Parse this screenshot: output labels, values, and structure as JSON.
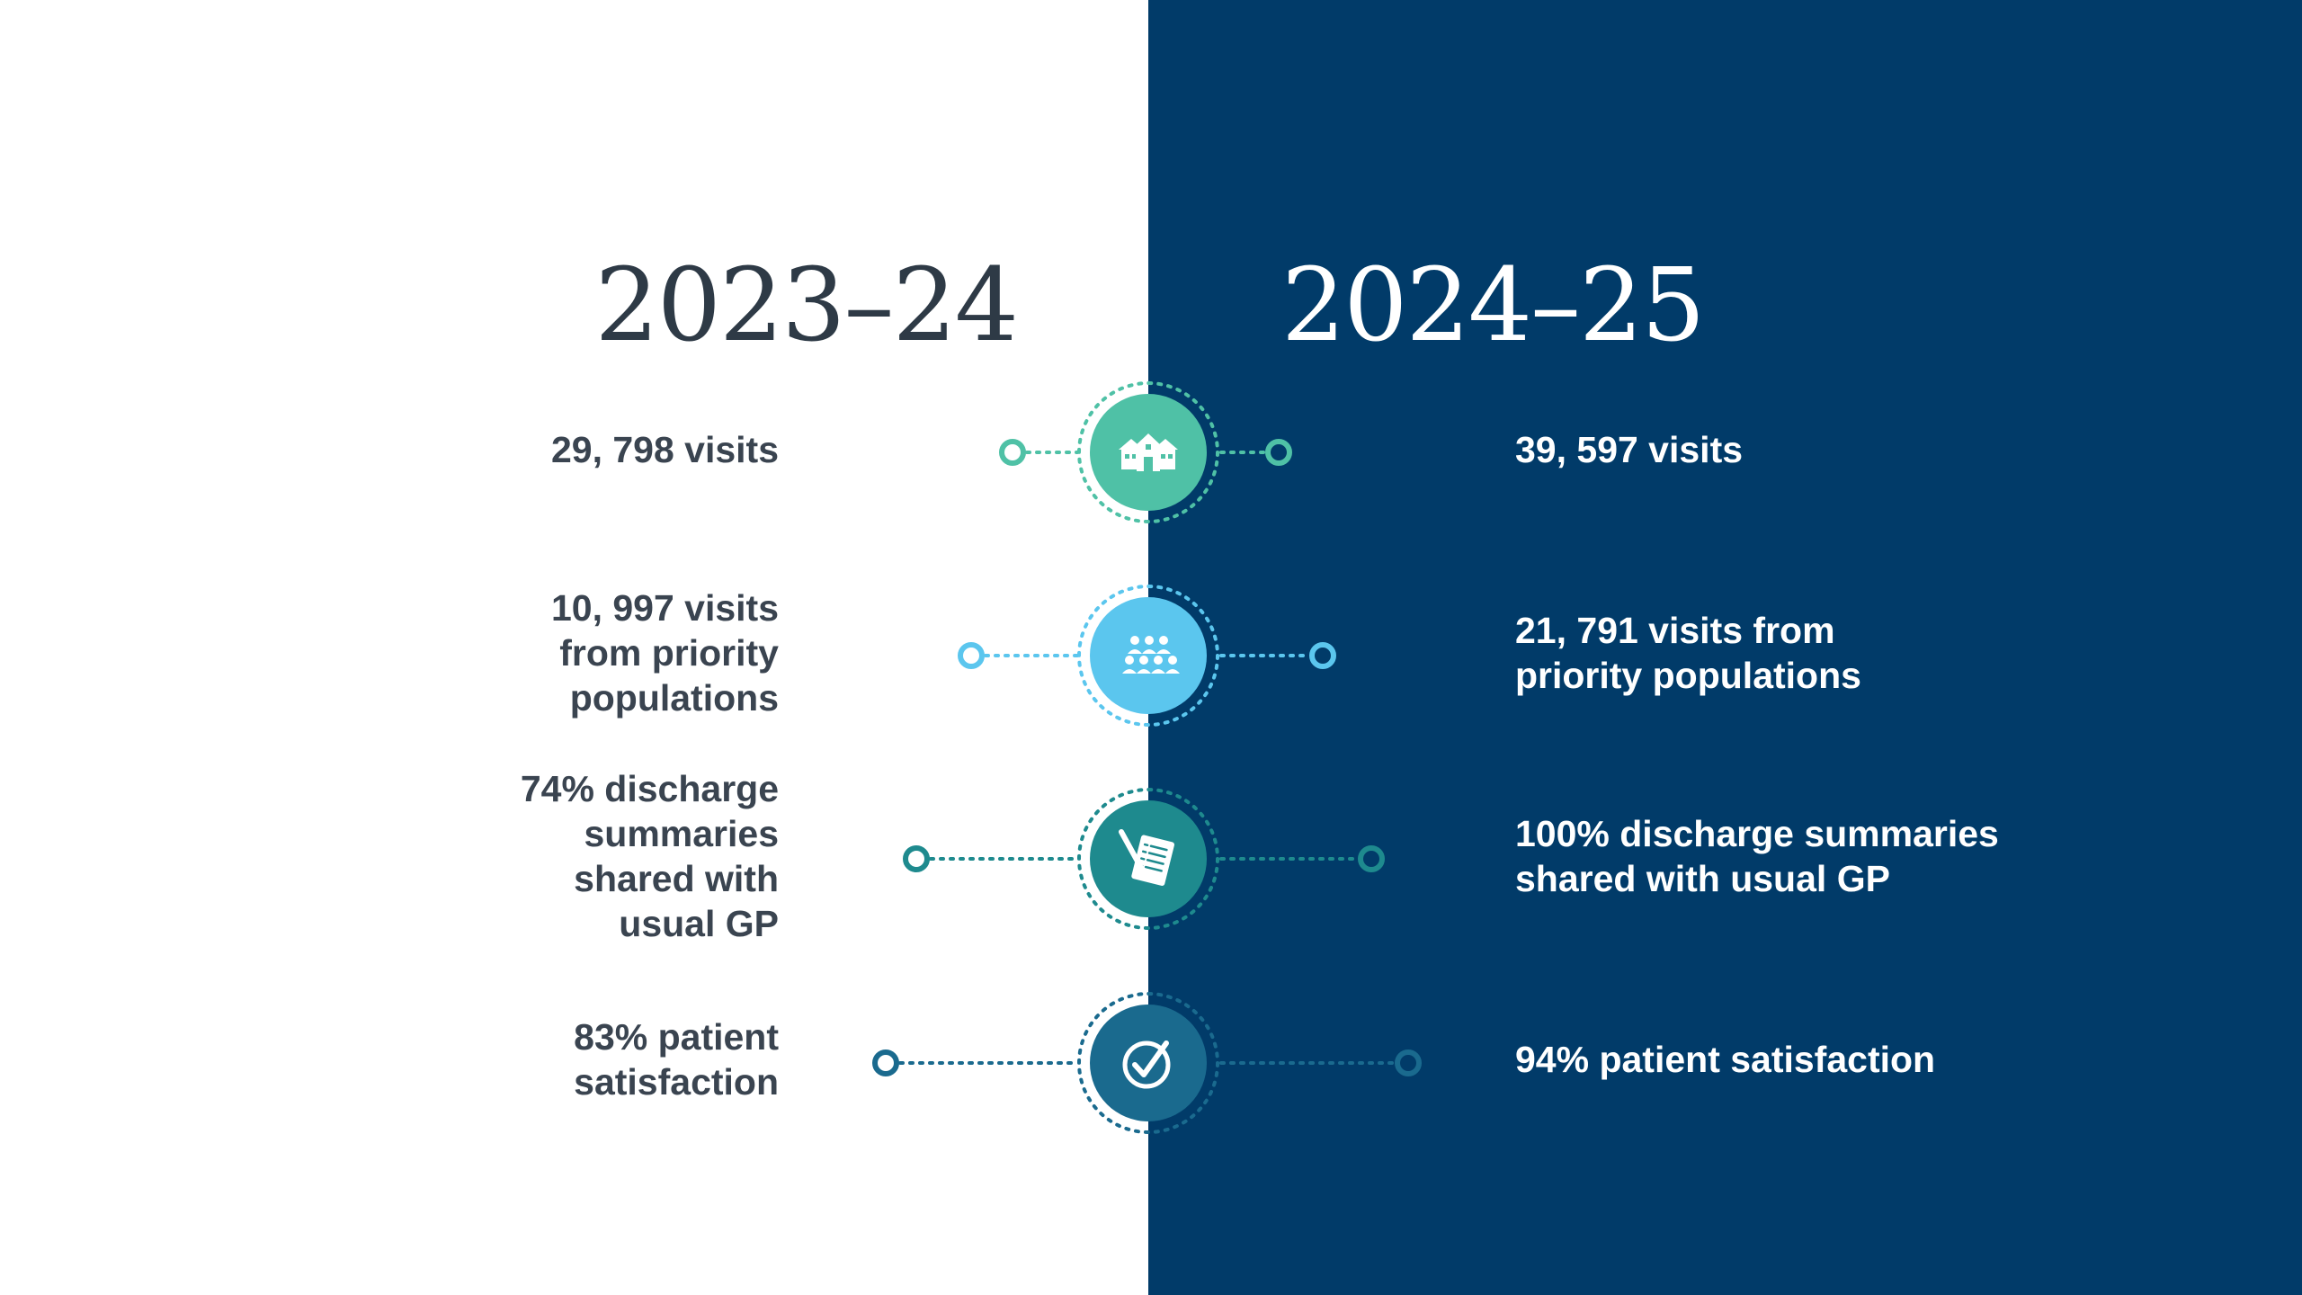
{
  "headers": {
    "left_year": "2023–24",
    "right_year": "2024–25"
  },
  "rows": [
    {
      "icon": "houses-icon",
      "color": "#4FC1A6",
      "left_lines": [
        "29, 798 visits"
      ],
      "right_lines": [
        "39, 597 visits"
      ]
    },
    {
      "icon": "people-group-icon",
      "color": "#5BC6EE",
      "left_lines": [
        "10, 997 visits",
        "from priority",
        "populations"
      ],
      "right_lines": [
        "21, 791 visits from",
        "priority populations"
      ]
    },
    {
      "icon": "document-pen-icon",
      "color": "#1E8A8E",
      "left_lines": [
        "74% discharge",
        "summaries",
        "shared with",
        "usual GP"
      ],
      "right_lines": [
        "100% discharge summaries",
        "shared with usual GP"
      ]
    },
    {
      "icon": "checkmark-circle-icon",
      "color": "#1A6A8E",
      "left_lines": [
        "83% patient",
        "satisfaction"
      ],
      "right_lines": [
        "94% patient satisfaction"
      ]
    }
  ],
  "colors": {
    "right_panel": "#013B69",
    "left_text": "#3A4450",
    "right_text": "#FFFFFF"
  }
}
